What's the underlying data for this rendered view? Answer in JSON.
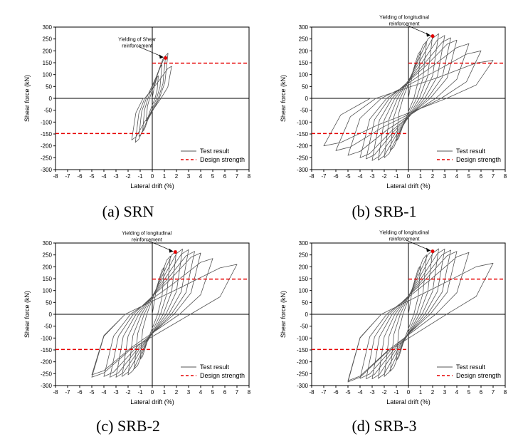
{
  "chart_data": [
    {
      "type": "line",
      "caption": "(a) SRN",
      "xlabel": "Lateral drift (%)",
      "ylabel": "Shear force (kN)",
      "xlim": [
        -8,
        8
      ],
      "ylim": [
        -300,
        300
      ],
      "xticks": [
        "-8",
        "-7",
        "-6",
        "-5",
        "-4",
        "-3",
        "-2",
        "-1",
        "0",
        "1",
        "2",
        "3",
        "4",
        "5",
        "6",
        "7",
        "8"
      ],
      "yticks": [
        "300",
        "250",
        "200",
        "150",
        "100",
        "50",
        "0",
        "-50",
        "-100",
        "-150",
        "-200",
        "-250",
        "-300"
      ],
      "grid": false,
      "legend_position": "bottom-right",
      "series": [
        {
          "name": "Test result",
          "style": "solid",
          "color": "#555555",
          "cycles": [
            [
              0.5,
              95,
              -0.5,
              -95
            ],
            [
              0.8,
              140,
              -0.8,
              -140
            ],
            [
              1.1,
              178,
              -1.1,
              -160
            ],
            [
              1.3,
              190,
              -1.4,
              -185
            ],
            [
              1.6,
              135,
              -1.7,
              -175
            ]
          ]
        },
        {
          "name": "Design strength",
          "style": "dashed",
          "color": "#e60000",
          "value": 148
        }
      ],
      "annotation": {
        "text": [
          "Yielding of Shear",
          "reinforcement"
        ],
        "point": [
          1.1,
          170
        ]
      }
    },
    {
      "type": "line",
      "caption": "(b) SRB-1",
      "xlabel": "Lateral drift (%)",
      "ylabel": "Shear force (kN)",
      "xlim": [
        -8,
        8
      ],
      "ylim": [
        -300,
        300
      ],
      "xticks": [
        "-8",
        "-7",
        "-6",
        "-5",
        "-4",
        "-3",
        "-2",
        "-1",
        "0",
        "1",
        "2",
        "3",
        "4",
        "5",
        "6",
        "7",
        "8"
      ],
      "yticks": [
        "300",
        "250",
        "200",
        "150",
        "100",
        "50",
        "0",
        "-50",
        "-100",
        "-150",
        "-200",
        "-250",
        "-300"
      ],
      "grid": false,
      "legend_position": "bottom-right",
      "series": [
        {
          "name": "Test result",
          "style": "solid",
          "color": "#555555",
          "cycles": [
            [
              1,
              200,
              -1,
              -180
            ],
            [
              1.5,
              240,
              -1.5,
              -220
            ],
            [
              2,
              268,
              -2,
              -250
            ],
            [
              2.5,
              272,
              -2.5,
              -260
            ],
            [
              3,
              265,
              -3,
              -262
            ],
            [
              3.5,
              255,
              -3.5,
              -255
            ],
            [
              4,
              245,
              -4,
              -250
            ],
            [
              5,
              230,
              -5,
              -240
            ],
            [
              6,
              200,
              -6,
              -220
            ],
            [
              7,
              160,
              -7,
              -200
            ]
          ]
        },
        {
          "name": "Design strength",
          "style": "dashed",
          "color": "#e60000",
          "value": 148
        }
      ],
      "annotation": {
        "text": [
          "Yielding of longitudinal",
          "reinforcement"
        ],
        "point": [
          2,
          262
        ]
      }
    },
    {
      "type": "line",
      "caption": "(c) SRB-2",
      "xlabel": "Lateral drift (%)",
      "ylabel": "Shear force (kN)",
      "xlim": [
        -8,
        8
      ],
      "ylim": [
        -300,
        300
      ],
      "xticks": [
        "-8",
        "-7",
        "-6",
        "-5",
        "-4",
        "-3",
        "-2",
        "-1",
        "0",
        "1",
        "2",
        "3",
        "4",
        "5",
        "6",
        "7",
        "8"
      ],
      "yticks": [
        "300",
        "250",
        "200",
        "150",
        "100",
        "50",
        "0",
        "-50",
        "-100",
        "-150",
        "-200",
        "-250",
        "-300"
      ],
      "grid": false,
      "legend_position": "bottom-right",
      "series": [
        {
          "name": "Test result",
          "style": "solid",
          "color": "#555555",
          "cycles": [
            [
              1,
              200,
              -1,
              -190
            ],
            [
              1.5,
              245,
              -1.5,
              -230
            ],
            [
              2,
              268,
              -2,
              -255
            ],
            [
              2.5,
              275,
              -2.5,
              -262
            ],
            [
              3,
              272,
              -3,
              -265
            ],
            [
              3.5,
              265,
              -3.5,
              -265
            ],
            [
              4,
              258,
              -4,
              -262
            ],
            [
              5,
              235,
              -5,
              -255
            ],
            [
              7,
              210,
              -5,
              -265
            ]
          ]
        },
        {
          "name": "Design strength",
          "style": "dashed",
          "color": "#e60000",
          "value": 148
        }
      ],
      "annotation": {
        "text": [
          "Yielding of longitudinal",
          "reinforcement"
        ],
        "point": [
          1.9,
          262
        ]
      }
    },
    {
      "type": "line",
      "caption": "(d) SRB-3",
      "xlabel": "Lateral drift (%)",
      "ylabel": "Shear force (kN)",
      "xlim": [
        -8,
        8
      ],
      "ylim": [
        -300,
        300
      ],
      "xticks": [
        "-8",
        "-7",
        "-6",
        "-5",
        "-4",
        "-3",
        "-2",
        "-1",
        "0",
        "1",
        "2",
        "3",
        "4",
        "5",
        "6",
        "7",
        "8"
      ],
      "yticks": [
        "300",
        "250",
        "200",
        "150",
        "100",
        "50",
        "0",
        "-50",
        "-100",
        "-150",
        "-200",
        "-250",
        "-300"
      ],
      "grid": false,
      "legend_position": "bottom-right",
      "series": [
        {
          "name": "Test result",
          "style": "solid",
          "color": "#555555",
          "cycles": [
            [
              1,
              205,
              -1,
              -195
            ],
            [
              1.5,
              250,
              -1.5,
              -240
            ],
            [
              2,
              270,
              -2,
              -262
            ],
            [
              2.5,
              276,
              -2.5,
              -270
            ],
            [
              3,
              275,
              -3,
              -272
            ],
            [
              3.5,
              270,
              -3.5,
              -272
            ],
            [
              4,
              265,
              -4,
              -270
            ],
            [
              5,
              260,
              -5,
              -280
            ],
            [
              7,
              215,
              -5,
              -285
            ]
          ]
        },
        {
          "name": "Design strength",
          "style": "dashed",
          "color": "#e60000",
          "value": 148
        }
      ],
      "annotation": {
        "text": [
          "Yielding of longitudinal",
          "reinforcement"
        ],
        "point": [
          2,
          265
        ]
      }
    }
  ]
}
